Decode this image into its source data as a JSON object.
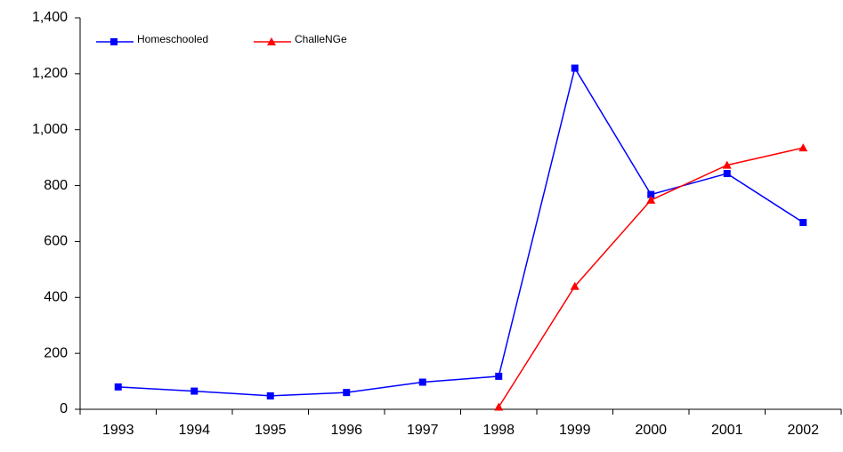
{
  "chart_data": {
    "type": "line",
    "categories": [
      "1993",
      "1994",
      "1995",
      "1996",
      "1997",
      "1998",
      "1999",
      "2000",
      "2001",
      "2002"
    ],
    "series": [
      {
        "name": "Homeschooled",
        "color": "#0000ff",
        "marker": "square",
        "values": [
          80,
          65,
          48,
          60,
          97,
          118,
          1220,
          768,
          843,
          668
        ]
      },
      {
        "name": "ChalleNGe",
        "color": "#ff0000",
        "marker": "triangle",
        "values": [
          null,
          null,
          null,
          null,
          null,
          8,
          440,
          748,
          873,
          935
        ]
      }
    ],
    "ylim": [
      0,
      1400
    ],
    "yticks": [
      0,
      200,
      400,
      600,
      800,
      {
        "value": 1000,
        "label": "1,000"
      },
      {
        "value": 1200,
        "label": "1,200"
      },
      {
        "value": 1400,
        "label": "1,400"
      }
    ],
    "grid": false,
    "legend": "upper left"
  }
}
